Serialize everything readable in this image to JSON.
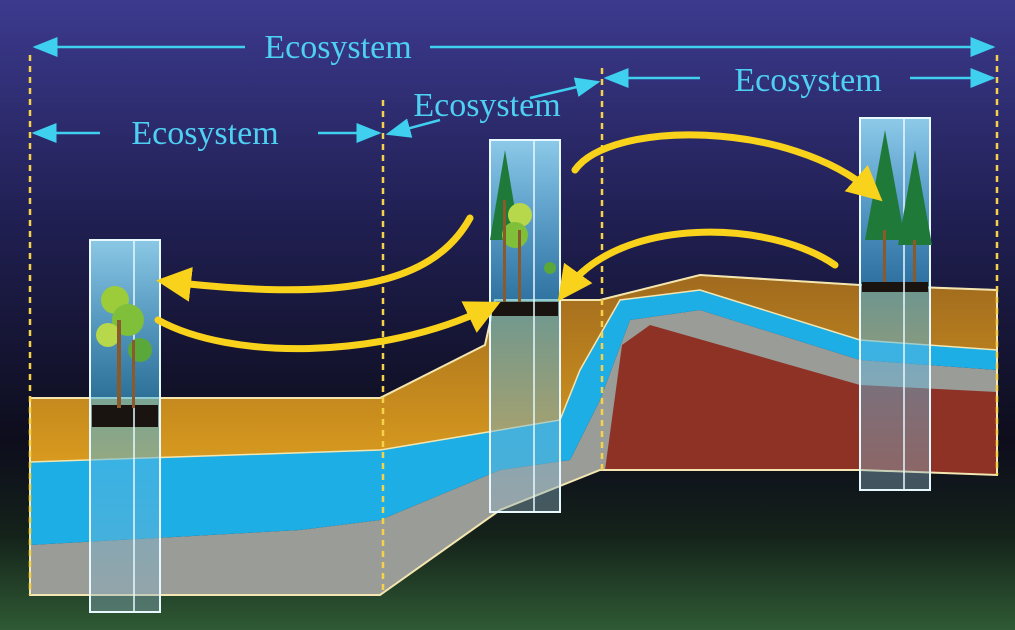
{
  "labels": {
    "whole": "Ecosystem",
    "left": "Ecosystem",
    "middle": "Ecosystem",
    "right": "Ecosystem"
  }
}
